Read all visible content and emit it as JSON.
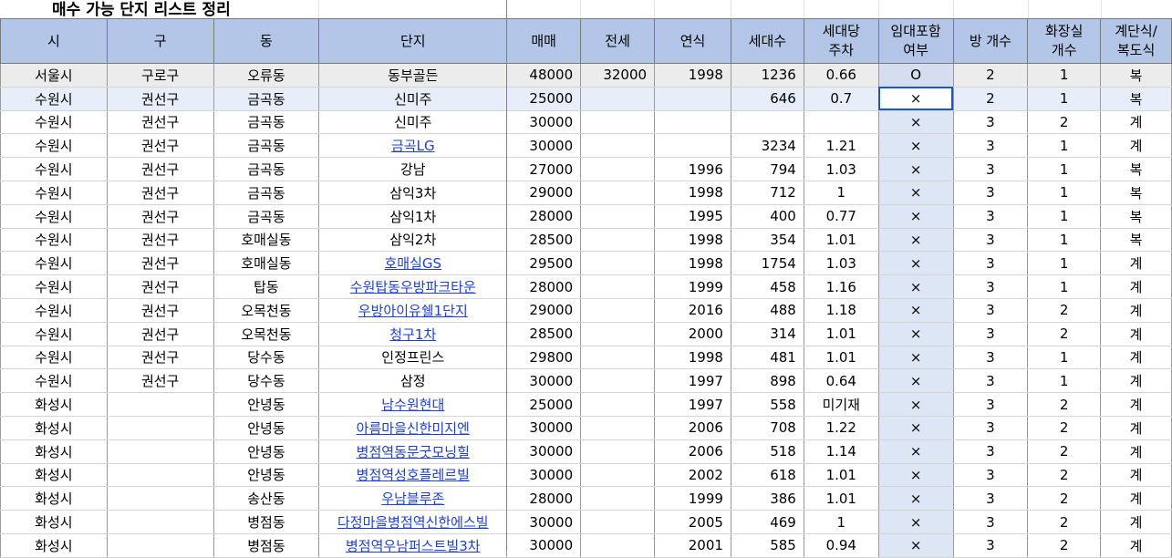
{
  "sheet_title": "매수 가능 단지 리스트 정리",
  "headers": [
    "시",
    "구",
    "동",
    "단지",
    "매매",
    "전세",
    "연식",
    "세대수",
    "세대당\n주차",
    "임대포함\n여부",
    "방 개수",
    "화장실\n개수",
    "계단식/\n복도식"
  ],
  "rows": [
    {
      "si": "서울시",
      "gu": "구로구",
      "dong": "오류동",
      "danji": "동부골든",
      "link": false,
      "maemae": "48000",
      "jeonse": "32000",
      "year": "1998",
      "units": "1236",
      "parking": "0.66",
      "rental": "O",
      "rooms": "2",
      "baths": "1",
      "type": "복"
    },
    {
      "si": "수원시",
      "gu": "권선구",
      "dong": "금곡동",
      "danji": "신미주",
      "link": false,
      "maemae": "25000",
      "jeonse": "",
      "year": "",
      "units": "646",
      "parking": "0.7",
      "rental": "×",
      "rooms": "2",
      "baths": "1",
      "type": "복"
    },
    {
      "si": "수원시",
      "gu": "권선구",
      "dong": "금곡동",
      "danji": "신미주",
      "link": false,
      "maemae": "30000",
      "jeonse": "",
      "year": "",
      "units": "",
      "parking": "",
      "rental": "×",
      "rooms": "3",
      "baths": "2",
      "type": "계"
    },
    {
      "si": "수원시",
      "gu": "권선구",
      "dong": "금곡동",
      "danji": "금곡LG",
      "link": true,
      "maemae": "30000",
      "jeonse": "",
      "year": "",
      "units": "3234",
      "parking": "1.21",
      "rental": "×",
      "rooms": "3",
      "baths": "1",
      "type": "계"
    },
    {
      "si": "수원시",
      "gu": "권선구",
      "dong": "금곡동",
      "danji": "강남",
      "link": false,
      "maemae": "27000",
      "jeonse": "",
      "year": "1996",
      "units": "794",
      "parking": "1.03",
      "rental": "×",
      "rooms": "3",
      "baths": "1",
      "type": "복"
    },
    {
      "si": "수원시",
      "gu": "권선구",
      "dong": "금곡동",
      "danji": "삼익3차",
      "link": false,
      "maemae": "29000",
      "jeonse": "",
      "year": "1998",
      "units": "712",
      "parking": "1",
      "rental": "×",
      "rooms": "3",
      "baths": "1",
      "type": "복"
    },
    {
      "si": "수원시",
      "gu": "권선구",
      "dong": "금곡동",
      "danji": "삼익1차",
      "link": false,
      "maemae": "28000",
      "jeonse": "",
      "year": "1995",
      "units": "400",
      "parking": "0.77",
      "rental": "×",
      "rooms": "3",
      "baths": "1",
      "type": "복"
    },
    {
      "si": "수원시",
      "gu": "권선구",
      "dong": "호매실동",
      "danji": "삼익2차",
      "link": false,
      "maemae": "28500",
      "jeonse": "",
      "year": "1998",
      "units": "354",
      "parking": "1.01",
      "rental": "×",
      "rooms": "3",
      "baths": "1",
      "type": "복"
    },
    {
      "si": "수원시",
      "gu": "권선구",
      "dong": "호매실동",
      "danji": "호매실GS",
      "link": true,
      "maemae": "29500",
      "jeonse": "",
      "year": "1998",
      "units": "1754",
      "parking": "1.03",
      "rental": "×",
      "rooms": "3",
      "baths": "1",
      "type": "계"
    },
    {
      "si": "수원시",
      "gu": "권선구",
      "dong": "탑동",
      "danji": "수원탑동우방파크타운",
      "link": true,
      "maemae": "28000",
      "jeonse": "",
      "year": "1999",
      "units": "458",
      "parking": "1.16",
      "rental": "×",
      "rooms": "3",
      "baths": "1",
      "type": "계"
    },
    {
      "si": "수원시",
      "gu": "권선구",
      "dong": "오목천동",
      "danji": "우방아이유쉘1단지",
      "link": true,
      "maemae": "29000",
      "jeonse": "",
      "year": "2016",
      "units": "488",
      "parking": "1.18",
      "rental": "×",
      "rooms": "3",
      "baths": "2",
      "type": "계"
    },
    {
      "si": "수원시",
      "gu": "권선구",
      "dong": "오목천동",
      "danji": "청구1차",
      "link": true,
      "maemae": "28500",
      "jeonse": "",
      "year": "2000",
      "units": "314",
      "parking": "1.01",
      "rental": "×",
      "rooms": "3",
      "baths": "2",
      "type": "계"
    },
    {
      "si": "수원시",
      "gu": "권선구",
      "dong": "당수동",
      "danji": "인정프린스",
      "link": false,
      "maemae": "29800",
      "jeonse": "",
      "year": "1998",
      "units": "481",
      "parking": "1.01",
      "rental": "×",
      "rooms": "3",
      "baths": "1",
      "type": "계"
    },
    {
      "si": "수원시",
      "gu": "권선구",
      "dong": "당수동",
      "danji": "삼정",
      "link": false,
      "maemae": "30000",
      "jeonse": "",
      "year": "1997",
      "units": "898",
      "parking": "0.64",
      "rental": "×",
      "rooms": "3",
      "baths": "1",
      "type": "계"
    },
    {
      "si": "화성시",
      "gu": "",
      "dong": "안녕동",
      "danji": "남수원현대",
      "link": true,
      "maemae": "25000",
      "jeonse": "",
      "year": "1997",
      "units": "558",
      "parking": "미기재",
      "rental": "×",
      "rooms": "3",
      "baths": "2",
      "type": "계"
    },
    {
      "si": "화성시",
      "gu": "",
      "dong": "안녕동",
      "danji": "아름마을신한미지엔",
      "link": true,
      "maemae": "30000",
      "jeonse": "",
      "year": "2006",
      "units": "708",
      "parking": "1.22",
      "rental": "×",
      "rooms": "3",
      "baths": "2",
      "type": "계"
    },
    {
      "si": "화성시",
      "gu": "",
      "dong": "안녕동",
      "danji": "병점역동문굿모닝힐",
      "link": true,
      "maemae": "30000",
      "jeonse": "",
      "year": "2006",
      "units": "518",
      "parking": "1.14",
      "rental": "×",
      "rooms": "3",
      "baths": "2",
      "type": "계"
    },
    {
      "si": "화성시",
      "gu": "",
      "dong": "안녕동",
      "danji": "병점역성호플레르빌",
      "link": true,
      "maemae": "30000",
      "jeonse": "",
      "year": "2002",
      "units": "618",
      "parking": "1.01",
      "rental": "×",
      "rooms": "3",
      "baths": "2",
      "type": "계"
    },
    {
      "si": "화성시",
      "gu": "",
      "dong": "송산동",
      "danji": "우남블루존",
      "link": true,
      "maemae": "28000",
      "jeonse": "",
      "year": "1999",
      "units": "386",
      "parking": "1.01",
      "rental": "×",
      "rooms": "3",
      "baths": "2",
      "type": "계"
    },
    {
      "si": "화성시",
      "gu": "",
      "dong": "병점동",
      "danji": "다정마을병점역신한에스빌",
      "link": true,
      "maemae": "30000",
      "jeonse": "",
      "year": "2005",
      "units": "469",
      "parking": "1",
      "rental": "×",
      "rooms": "3",
      "baths": "2",
      "type": "계"
    },
    {
      "si": "화성시",
      "gu": "",
      "dong": "병점동",
      "danji": "병점역우남퍼스트빌3차",
      "link": true,
      "maemae": "30000",
      "jeonse": "",
      "year": "2001",
      "units": "585",
      "parking": "0.94",
      "rental": "×",
      "rooms": "3",
      "baths": "2",
      "type": "계"
    }
  ]
}
